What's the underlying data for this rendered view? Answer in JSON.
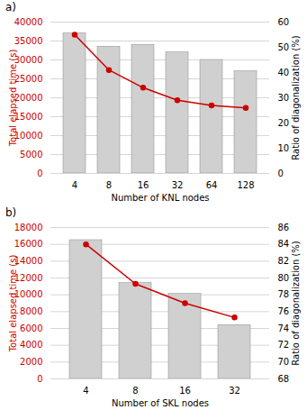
{
  "chart_data": [
    {
      "type": "bar",
      "title": "a)",
      "categories": [
        "4",
        "8",
        "16",
        "32",
        "64",
        "128"
      ],
      "xlabel": "Number of KNL nodes",
      "ylabel": "Total elapsed time (s)",
      "y2label": "Ratio of diagonalization (%)",
      "series": [
        {
          "type": "bar",
          "color": "#d0d0d0",
          "values": [
            37000,
            33500,
            34000,
            32000,
            30000,
            27000
          ]
        },
        {
          "type": "line",
          "axis": "y2",
          "color": "#cc0000",
          "marker": "circle",
          "values": [
            55,
            41,
            34,
            29,
            27,
            26
          ]
        }
      ],
      "ylim": [
        0,
        40000
      ],
      "yticks": [
        0,
        5000,
        10000,
        15000,
        20000,
        25000,
        30000,
        35000,
        40000
      ],
      "y2lim": [
        0,
        60
      ],
      "y2ticks": [
        0,
        10,
        20,
        30,
        40,
        50,
        60
      ],
      "grid": true
    },
    {
      "type": "bar",
      "title": "b)",
      "categories": [
        "4",
        "8",
        "16",
        "32"
      ],
      "xlabel": "Number of SKL nodes",
      "ylabel": "Total elapsed time (s)",
      "y2label": "Ratio of diagonalization (%)",
      "series": [
        {
          "type": "bar",
          "color": "#d0d0d0",
          "values": [
            16500,
            11400,
            10100,
            6400
          ]
        },
        {
          "type": "line",
          "axis": "y2",
          "color": "#cc0000",
          "marker": "circle",
          "values": [
            84,
            79.3,
            77.0,
            75.3
          ]
        }
      ],
      "ylim": [
        0,
        18000
      ],
      "yticks": [
        0,
        2000,
        4000,
        6000,
        8000,
        10000,
        12000,
        14000,
        16000,
        18000
      ],
      "y2lim": [
        68,
        86
      ],
      "y2ticks": [
        68,
        70,
        72,
        74,
        76,
        78,
        80,
        82,
        84,
        86
      ],
      "grid": true
    }
  ]
}
